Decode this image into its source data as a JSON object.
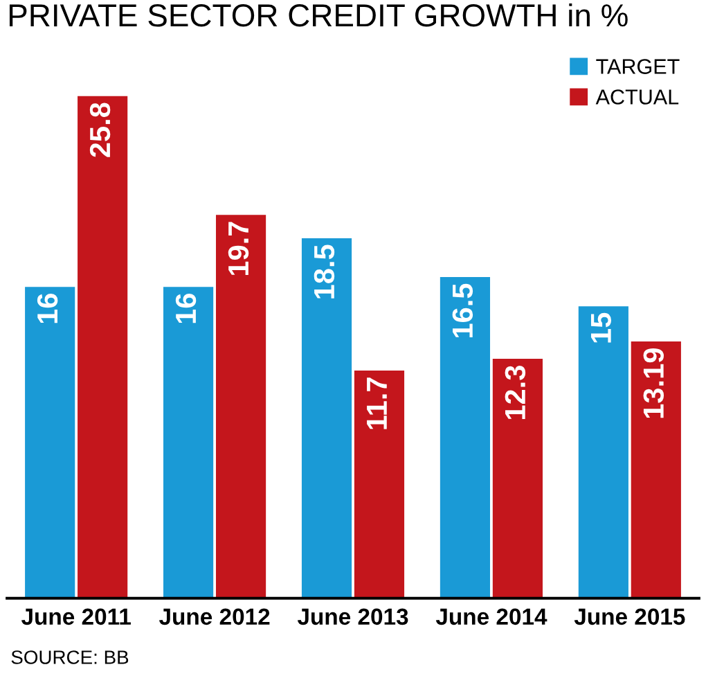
{
  "chart_data": {
    "type": "bar",
    "title": "PRIVATE SECTOR CREDIT GROWTH in %",
    "categories": [
      "June 2011",
      "June 2012",
      "June 2013",
      "June 2014",
      "June 2015"
    ],
    "series": [
      {
        "name": "TARGET",
        "color": "#1a9ad6",
        "values": [
          16,
          16,
          18.5,
          16.5,
          15
        ]
      },
      {
        "name": "ACTUAL",
        "color": "#c4161c",
        "values": [
          25.8,
          19.7,
          11.7,
          12.3,
          13.19
        ]
      }
    ],
    "data_labels": true,
    "legend": "top right",
    "grid": false,
    "tick_labels": "x",
    "annotations": [
      "SOURCE: BB"
    ]
  }
}
